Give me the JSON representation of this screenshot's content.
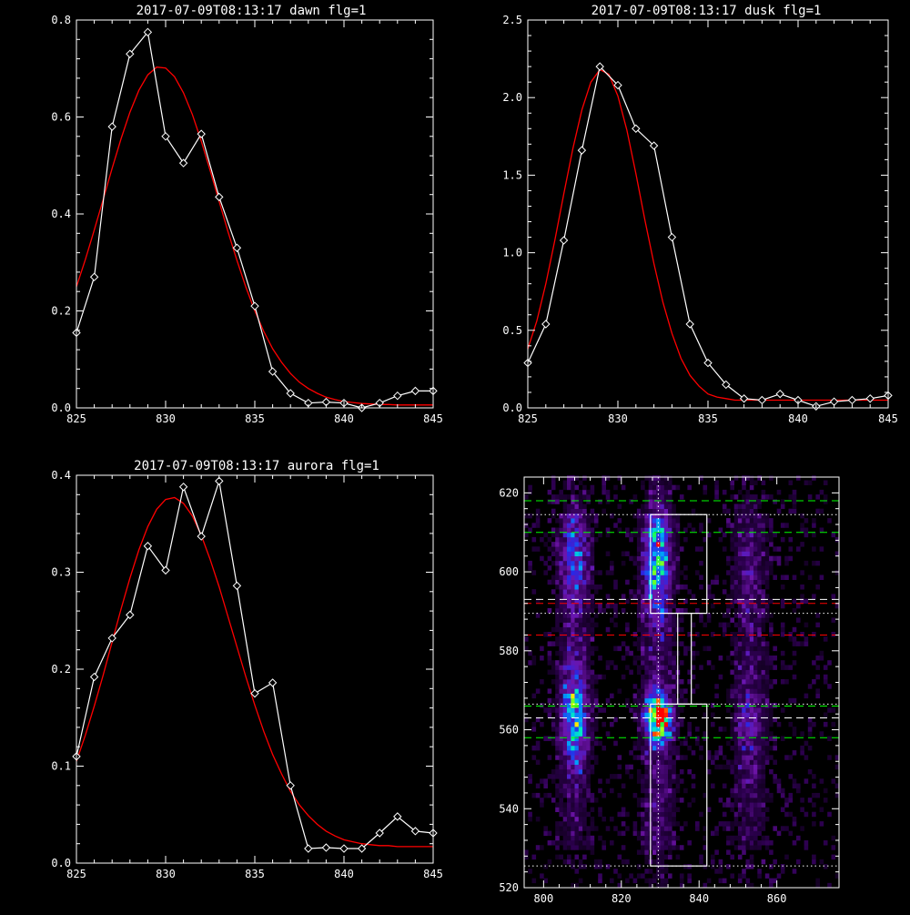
{
  "colors": {
    "background": "#000000",
    "axes": "#ffffff",
    "data_line": "#ffffff",
    "fit_line": "#ff0000",
    "guide_green": "#00ff00",
    "guide_red": "#ff0000",
    "guide_white": "#ffffff"
  },
  "chart_data": [
    {
      "type": "line",
      "title": "2017-07-09T08:13:17 dawn flg=1",
      "xlabel": "",
      "ylabel": "",
      "xlim": [
        825,
        845
      ],
      "ylim": [
        0,
        0.8
      ],
      "xticks": [
        825,
        830,
        835,
        840,
        845
      ],
      "yticks": [
        0.0,
        0.2,
        0.4,
        0.6,
        0.8
      ],
      "ytick_labels": [
        "0.0",
        "0.2",
        "0.4",
        "0.6",
        "0.8"
      ],
      "grid": false,
      "series": [
        {
          "kind": "data",
          "marker": "diamond",
          "color": "#ffffff",
          "x": [
            825,
            826,
            827,
            828,
            829,
            830,
            831,
            832,
            833,
            834,
            835,
            836,
            837,
            838,
            839,
            840,
            841,
            842,
            843,
            844,
            845
          ],
          "y": [
            0.155,
            0.27,
            0.58,
            0.73,
            0.775,
            0.56,
            0.505,
            0.565,
            0.435,
            0.33,
            0.21,
            0.075,
            0.03,
            0.01,
            0.012,
            0.01,
            0.0,
            0.01,
            0.025,
            0.035,
            0.035
          ]
        },
        {
          "kind": "fit",
          "color": "#ff0000",
          "x": [
            825,
            825.5,
            826,
            826.5,
            827,
            827.5,
            828,
            828.5,
            829,
            829.5,
            830,
            830.5,
            831,
            831.5,
            832,
            832.5,
            833,
            833.5,
            834,
            834.5,
            835,
            835.5,
            836,
            836.5,
            837,
            837.5,
            838,
            838.5,
            839,
            839.5,
            840,
            840.5,
            841,
            841.5,
            842,
            842.5,
            843,
            843.5,
            844,
            844.5,
            845
          ],
          "y": [
            0.25,
            0.306,
            0.367,
            0.43,
            0.494,
            0.555,
            0.61,
            0.655,
            0.687,
            0.703,
            0.701,
            0.683,
            0.65,
            0.605,
            0.55,
            0.489,
            0.426,
            0.363,
            0.304,
            0.249,
            0.2,
            0.158,
            0.122,
            0.094,
            0.071,
            0.053,
            0.04,
            0.03,
            0.022,
            0.017,
            0.013,
            0.011,
            0.009,
            0.008,
            0.007,
            0.007,
            0.006,
            0.006,
            0.006,
            0.006,
            0.006
          ]
        }
      ]
    },
    {
      "type": "line",
      "title": "2017-07-09T08:13:17 dusk flg=1",
      "xlabel": "",
      "ylabel": "",
      "xlim": [
        825,
        845
      ],
      "ylim": [
        0,
        2.5
      ],
      "xticks": [
        825,
        830,
        835,
        840,
        845
      ],
      "yticks": [
        0.0,
        0.5,
        1.0,
        1.5,
        2.0,
        2.5
      ],
      "ytick_labels": [
        "0.0",
        "0.5",
        "1.0",
        "1.5",
        "2.0",
        "2.5"
      ],
      "grid": false,
      "series": [
        {
          "kind": "data",
          "marker": "diamond",
          "color": "#ffffff",
          "x": [
            825,
            826,
            827,
            828,
            829,
            830,
            831,
            832,
            833,
            834,
            835,
            836,
            837,
            838,
            839,
            840,
            841,
            842,
            843,
            844,
            845
          ],
          "y": [
            0.29,
            0.54,
            1.08,
            1.66,
            2.2,
            2.08,
            1.8,
            1.69,
            1.1,
            0.54,
            0.29,
            0.15,
            0.06,
            0.05,
            0.09,
            0.05,
            0.01,
            0.04,
            0.05,
            0.06,
            0.08
          ]
        },
        {
          "kind": "fit",
          "color": "#ff0000",
          "x": [
            825,
            825.5,
            826,
            826.5,
            827,
            827.5,
            828,
            828.5,
            829,
            829.5,
            830,
            830.5,
            831,
            831.5,
            832,
            832.5,
            833,
            833.5,
            834,
            834.5,
            835,
            835.5,
            836,
            836.5,
            837,
            837.5,
            838,
            838.5,
            839,
            839.5,
            840,
            840.5,
            841,
            841.5,
            842,
            842.5,
            843,
            843.5,
            844,
            844.5,
            845
          ],
          "y": [
            0.38,
            0.56,
            0.8,
            1.08,
            1.38,
            1.67,
            1.92,
            2.1,
            2.18,
            2.15,
            2.01,
            1.79,
            1.51,
            1.21,
            0.93,
            0.68,
            0.48,
            0.32,
            0.21,
            0.14,
            0.09,
            0.07,
            0.06,
            0.05,
            0.05,
            0.05,
            0.05,
            0.05,
            0.05,
            0.05,
            0.05,
            0.05,
            0.05,
            0.05,
            0.05,
            0.05,
            0.05,
            0.05,
            0.05,
            0.05,
            0.05
          ]
        }
      ]
    },
    {
      "type": "line",
      "title": "2017-07-09T08:13:17 aurora flg=1",
      "xlabel": "",
      "ylabel": "",
      "xlim": [
        825,
        845
      ],
      "ylim": [
        0,
        0.4
      ],
      "xticks": [
        825,
        830,
        835,
        840,
        845
      ],
      "yticks": [
        0.0,
        0.1,
        0.2,
        0.3,
        0.4
      ],
      "ytick_labels": [
        "0.0",
        "0.1",
        "0.2",
        "0.3",
        "0.4"
      ],
      "grid": false,
      "series": [
        {
          "kind": "data",
          "marker": "diamond",
          "color": "#ffffff",
          "x": [
            825,
            826,
            827,
            828,
            829,
            830,
            831,
            832,
            833,
            834,
            835,
            836,
            837,
            838,
            839,
            840,
            841,
            842,
            843,
            844,
            845
          ],
          "y": [
            0.11,
            0.192,
            0.232,
            0.256,
            0.327,
            0.302,
            0.388,
            0.337,
            0.394,
            0.286,
            0.175,
            0.186,
            0.08,
            0.015,
            0.016,
            0.015,
            0.015,
            0.031,
            0.048,
            0.033,
            0.031
          ]
        },
        {
          "kind": "fit",
          "color": "#ff0000",
          "x": [
            825,
            825.5,
            826,
            826.5,
            827,
            827.5,
            828,
            828.5,
            829,
            829.5,
            830,
            830.5,
            831,
            831.5,
            832,
            832.5,
            833,
            833.5,
            834,
            834.5,
            835,
            835.5,
            836,
            836.5,
            837,
            837.5,
            838,
            838.5,
            839,
            839.5,
            840,
            840.5,
            841,
            841.5,
            842,
            842.5,
            843,
            843.5,
            844,
            844.5,
            845
          ],
          "y": [
            0.105,
            0.132,
            0.162,
            0.194,
            0.228,
            0.262,
            0.294,
            0.323,
            0.347,
            0.365,
            0.375,
            0.377,
            0.371,
            0.358,
            0.338,
            0.313,
            0.285,
            0.254,
            0.223,
            0.192,
            0.163,
            0.136,
            0.112,
            0.092,
            0.074,
            0.06,
            0.049,
            0.04,
            0.033,
            0.028,
            0.024,
            0.022,
            0.02,
            0.019,
            0.018,
            0.018,
            0.017,
            0.017,
            0.017,
            0.017,
            0.017
          ]
        }
      ]
    },
    {
      "type": "heatmap",
      "title": "",
      "xlabel": "",
      "ylabel": "",
      "xlim": [
        795,
        876
      ],
      "ylim": [
        520,
        624
      ],
      "xticks": [
        800,
        820,
        840,
        860
      ],
      "yticks": [
        520,
        540,
        560,
        580,
        600,
        620
      ],
      "grid": false,
      "colormap": "black-purple-blue-cyan-green-yellow-red",
      "hotspots": [
        {
          "x": 829.5,
          "y": 563,
          "intensity": 1.0
        },
        {
          "x": 829,
          "y": 603,
          "intensity": 0.55
        },
        {
          "x": 808,
          "y": 563,
          "intensity": 0.6
        },
        {
          "x": 808,
          "y": 602,
          "intensity": 0.4
        },
        {
          "x": 853,
          "y": 562,
          "intensity": 0.2
        },
        {
          "x": 853,
          "y": 600,
          "intensity": 0.12
        }
      ],
      "guide_lines": [
        {
          "orientation": "h",
          "value": 618,
          "style": "dashed",
          "color": "#00ff00"
        },
        {
          "orientation": "h",
          "value": 610,
          "style": "dashed",
          "color": "#00ff00"
        },
        {
          "orientation": "h",
          "value": 592,
          "style": "dashed",
          "color": "#ff0000"
        },
        {
          "orientation": "h",
          "value": 584,
          "style": "dashed",
          "color": "#ff0000"
        },
        {
          "orientation": "h",
          "value": 566,
          "style": "dashed",
          "color": "#00ff00"
        },
        {
          "orientation": "h",
          "value": 558,
          "style": "dashed",
          "color": "#00ff00"
        },
        {
          "orientation": "h",
          "value": 593,
          "style": "dashed",
          "color": "#ffffff"
        },
        {
          "orientation": "h",
          "value": 563,
          "style": "dashed",
          "color": "#ffffff"
        },
        {
          "orientation": "h",
          "value": 614.5,
          "style": "dotted",
          "color": "#ffffff"
        },
        {
          "orientation": "h",
          "value": 589.5,
          "style": "dotted",
          "color": "#ffffff"
        },
        {
          "orientation": "h",
          "value": 566.5,
          "style": "dotted",
          "color": "#ffffff"
        },
        {
          "orientation": "h",
          "value": 525.5,
          "style": "dotted",
          "color": "#ffffff"
        },
        {
          "orientation": "v",
          "value": 829.5,
          "style": "dotted",
          "color": "#ffffff"
        }
      ],
      "boxes": [
        {
          "x": [
            827.5,
            842
          ],
          "y": [
            589.5,
            614.5
          ],
          "color": "#ffffff"
        },
        {
          "x": [
            834.5,
            838
          ],
          "y": [
            566.5,
            589.5
          ],
          "color": "#ffffff"
        },
        {
          "x": [
            827.5,
            842
          ],
          "y": [
            525.5,
            566.5
          ],
          "color": "#ffffff"
        }
      ]
    }
  ]
}
